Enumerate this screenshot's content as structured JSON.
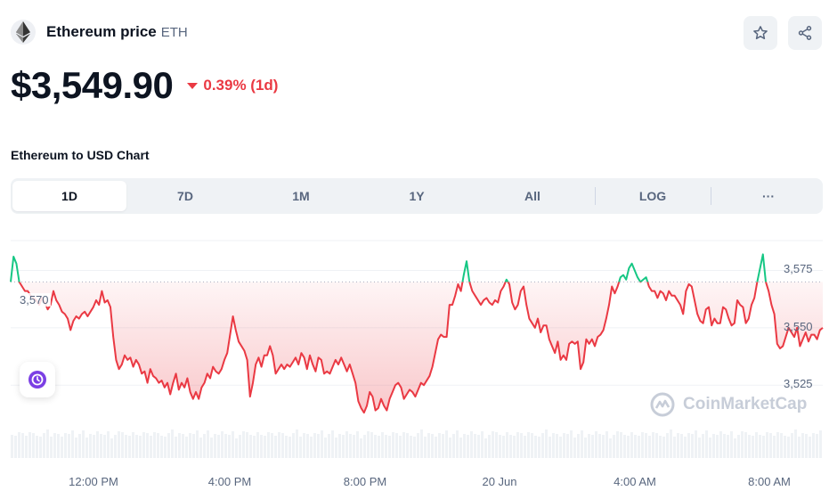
{
  "header": {
    "coin_name": "Ethereum price",
    "coin_symbol": "ETH",
    "logo_icon": "ethereum-logo-icon",
    "star_icon": "star-icon",
    "share_icon": "share-icon"
  },
  "price": {
    "value": "$3,549.90",
    "change": "0.39% (1d)",
    "direction": "down",
    "down_color": "#ea3943",
    "up_color": "#16c784"
  },
  "chart_section": {
    "title": "Ethereum to USD Chart",
    "ranges": [
      "1D",
      "7D",
      "1M",
      "1Y",
      "All",
      "LOG",
      "···"
    ],
    "active_range": "1D",
    "reference_label": "3,570",
    "watermark": "CoinMarketCap",
    "float_icon": "history-clock-icon"
  },
  "chart_data": {
    "type": "line",
    "title": "",
    "xlabel": "",
    "ylabel": "",
    "x_ticks": [
      "12:00 PM",
      "4:00 PM",
      "8:00 PM",
      "20 Jun",
      "4:00 AM",
      "8:00 AM"
    ],
    "y_ticks": [
      3575,
      3550,
      3525
    ],
    "y_tick_labels": [
      "3,575",
      "3,550",
      "3,525"
    ],
    "ylim": [
      3508,
      3588
    ],
    "reference_value": 3570,
    "grid": true,
    "volume_bars": true,
    "series": [
      {
        "values": [
          3570,
          3581,
          3578,
          3570,
          3568,
          3566,
          3566,
          3564,
          3563,
          3562,
          3560,
          3563,
          3561,
          3558,
          3560,
          3566,
          3562,
          3560,
          3557,
          3556,
          3554,
          3549,
          3553,
          3555,
          3554,
          3556,
          3557,
          3555,
          3557,
          3559,
          3562,
          3560,
          3566,
          3561,
          3562,
          3559,
          3546,
          3536,
          3532,
          3534,
          3538,
          3536,
          3537,
          3533,
          3536,
          3534,
          3530,
          3531,
          3526,
          3532,
          3529,
          3528,
          3526,
          3527,
          3524,
          3526,
          3521,
          3526,
          3530,
          3523,
          3526,
          3524,
          3528,
          3522,
          3519,
          3522,
          3519,
          3524,
          3526,
          3530,
          3528,
          3533,
          3531,
          3530,
          3532,
          3536,
          3539,
          3547,
          3555,
          3549,
          3544,
          3542,
          3540,
          3536,
          3520,
          3526,
          3534,
          3537,
          3533,
          3538,
          3538,
          3542,
          3538,
          3530,
          3532,
          3534,
          3532,
          3534,
          3533,
          3535,
          3537,
          3534,
          3539,
          3537,
          3532,
          3538,
          3534,
          3531,
          3537,
          3536,
          3530,
          3531,
          3530,
          3533,
          3536,
          3534,
          3537,
          3534,
          3531,
          3534,
          3530,
          3526,
          3518,
          3515,
          3513,
          3516,
          3522,
          3520,
          3514,
          3515,
          3519,
          3516,
          3514,
          3519,
          3522,
          3525,
          3526,
          3524,
          3519,
          3521,
          3523,
          3522,
          3520,
          3523,
          3526,
          3525,
          3527,
          3529,
          3533,
          3539,
          3545,
          3547,
          3546,
          3546,
          3560,
          3560,
          3564,
          3569,
          3566,
          3573,
          3579,
          3570,
          3566,
          3564,
          3562,
          3560,
          3562,
          3563,
          3561,
          3560,
          3562,
          3561,
          3566,
          3568,
          3571,
          3569,
          3561,
          3558,
          3560,
          3566,
          3568,
          3560,
          3554,
          3552,
          3550,
          3554,
          3548,
          3551,
          3551,
          3545,
          3542,
          3539,
          3544,
          3536,
          3538,
          3536,
          3543,
          3544,
          3543,
          3544,
          3532,
          3535,
          3545,
          3543,
          3545,
          3542,
          3546,
          3547,
          3549,
          3554,
          3560,
          3568,
          3565,
          3568,
          3572,
          3573,
          3571,
          3576,
          3578,
          3575,
          3572,
          3570,
          3571,
          3572,
          3568,
          3566,
          3566,
          3563,
          3566,
          3565,
          3562,
          3566,
          3564,
          3564,
          3562,
          3560,
          3556,
          3566,
          3569,
          3568,
          3562,
          3556,
          3553,
          3552,
          3558,
          3559,
          3551,
          3554,
          3552,
          3552,
          3559,
          3558,
          3554,
          3551,
          3552,
          3562,
          3560,
          3559,
          3552,
          3554,
          3560,
          3563,
          3570,
          3576,
          3582,
          3570,
          3566,
          3560,
          3556,
          3543,
          3541,
          3542,
          3546,
          3550,
          3548,
          3546,
          3550,
          3542,
          3545,
          3548,
          3544,
          3547,
          3547,
          3545,
          3549,
          3550
        ]
      }
    ]
  }
}
